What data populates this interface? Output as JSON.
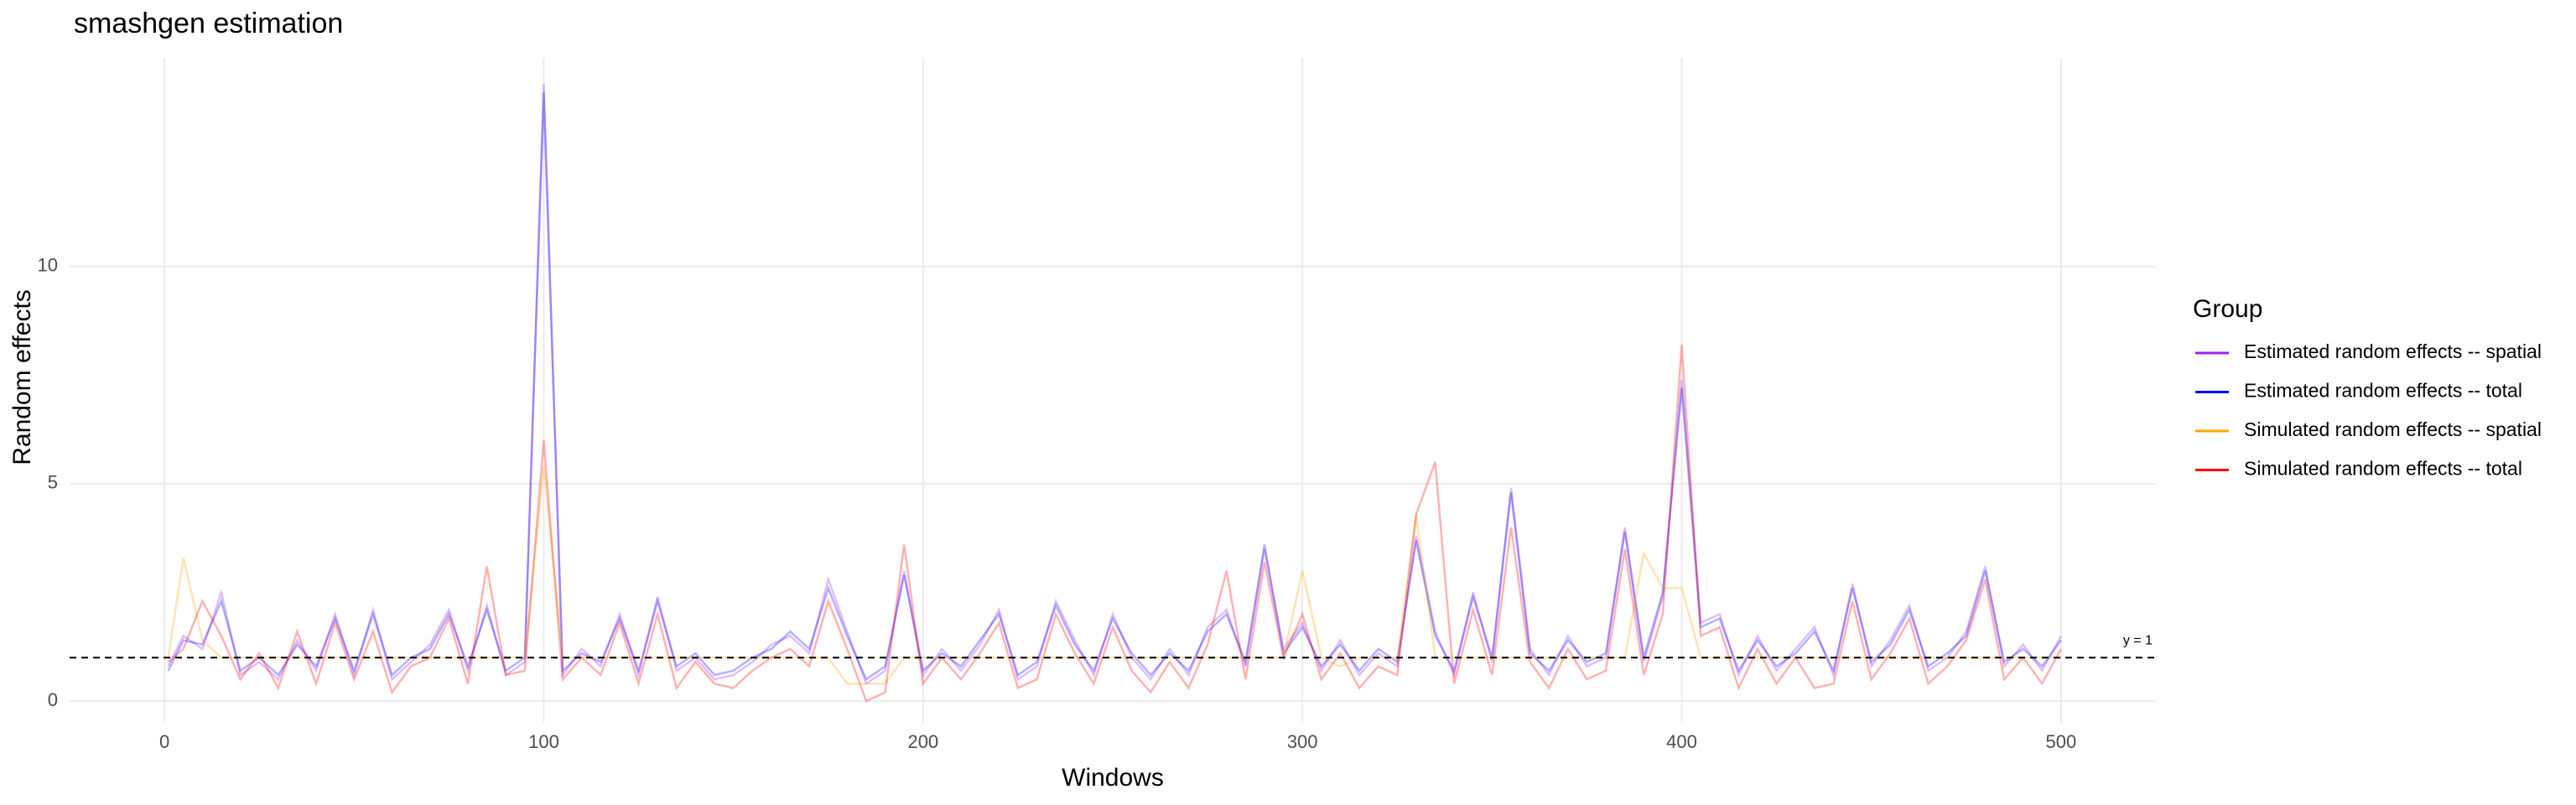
{
  "chart_data": {
    "type": "line",
    "title": "smashgen estimation",
    "x_label": "Windows",
    "y_label": "Random effects",
    "legend_title": "Group",
    "legend_position": "right",
    "grid": true,
    "alpha": 0.3,
    "xlim": [
      -25,
      525
    ],
    "ylim": [
      -0.5,
      14.8
    ],
    "xticks": [
      0,
      100,
      200,
      300,
      400,
      500
    ],
    "yticks": [
      0,
      5,
      10
    ],
    "hline": {
      "value": 1,
      "label": "y = 1"
    },
    "x": [
      1,
      5,
      10,
      15,
      20,
      25,
      30,
      35,
      40,
      45,
      50,
      55,
      60,
      65,
      70,
      75,
      80,
      85,
      90,
      95,
      100,
      105,
      110,
      115,
      120,
      125,
      130,
      135,
      140,
      145,
      150,
      155,
      160,
      165,
      170,
      175,
      180,
      185,
      190,
      195,
      200,
      205,
      210,
      215,
      220,
      225,
      230,
      235,
      240,
      245,
      250,
      255,
      260,
      265,
      270,
      275,
      280,
      285,
      290,
      295,
      300,
      305,
      310,
      315,
      320,
      325,
      330,
      335,
      340,
      345,
      350,
      355,
      360,
      365,
      370,
      375,
      380,
      385,
      390,
      395,
      400,
      405,
      410,
      415,
      420,
      425,
      430,
      435,
      440,
      445,
      450,
      455,
      460,
      465,
      470,
      475,
      480,
      485,
      490,
      495,
      500
    ],
    "series": [
      {
        "name": "Estimated random effects -- spatial",
        "color": "#a020f0",
        "values": [
          0.8,
          1.5,
          1.2,
          2.5,
          0.6,
          0.9,
          0.5,
          1.4,
          0.7,
          2.0,
          0.6,
          2.1,
          0.5,
          0.9,
          1.3,
          2.1,
          0.7,
          2.2,
          0.6,
          0.9,
          14.2,
          0.6,
          1.2,
          0.8,
          2.0,
          0.6,
          2.4,
          0.7,
          1.0,
          0.5,
          0.6,
          0.9,
          1.3,
          1.5,
          1.1,
          2.8,
          1.6,
          0.4,
          0.7,
          3.0,
          0.6,
          1.2,
          0.7,
          1.3,
          2.1,
          0.5,
          0.8,
          2.3,
          1.4,
          0.6,
          2.0,
          1.0,
          0.5,
          1.2,
          0.6,
          1.7,
          2.1,
          0.8,
          3.5,
          1.2,
          1.8,
          0.7,
          1.4,
          0.6,
          1.1,
          0.8,
          3.8,
          1.6,
          0.6,
          2.5,
          0.9,
          4.9,
          1.2,
          0.6,
          1.5,
          0.8,
          1.0,
          4.0,
          0.9,
          2.4,
          7.4,
          1.8,
          2.0,
          0.6,
          1.5,
          0.7,
          1.2,
          1.7,
          0.6,
          2.7,
          0.8,
          1.4,
          2.2,
          0.7,
          1.0,
          1.6,
          3.1,
          0.8,
          1.3,
          0.7,
          1.5
        ]
      },
      {
        "name": "Estimated random effects -- total",
        "color": "#0000ff",
        "values": [
          0.7,
          1.4,
          1.3,
          2.3,
          0.7,
          1.0,
          0.6,
          1.3,
          0.8,
          1.9,
          0.7,
          2.0,
          0.6,
          1.0,
          1.2,
          2.0,
          0.8,
          2.1,
          0.7,
          1.0,
          14.0,
          0.7,
          1.1,
          0.9,
          1.9,
          0.7,
          2.3,
          0.8,
          1.1,
          0.6,
          0.7,
          1.0,
          1.2,
          1.6,
          1.2,
          2.6,
          1.5,
          0.5,
          0.8,
          2.9,
          0.7,
          1.1,
          0.8,
          1.4,
          2.0,
          0.6,
          0.9,
          2.2,
          1.3,
          0.7,
          1.9,
          1.1,
          0.6,
          1.1,
          0.7,
          1.6,
          2.0,
          0.9,
          3.6,
          1.1,
          1.7,
          0.8,
          1.3,
          0.7,
          1.2,
          0.9,
          3.7,
          1.5,
          0.7,
          2.4,
          1.0,
          4.8,
          1.1,
          0.7,
          1.4,
          0.9,
          1.1,
          3.9,
          1.0,
          2.5,
          7.2,
          1.7,
          1.9,
          0.7,
          1.4,
          0.8,
          1.1,
          1.6,
          0.7,
          2.6,
          0.9,
          1.3,
          2.1,
          0.8,
          1.1,
          1.5,
          3.0,
          0.9,
          1.2,
          0.8,
          1.4
        ]
      },
      {
        "name": "Simulated random effects -- spatial",
        "color": "#ffa500",
        "values": [
          1.0,
          3.3,
          1.4,
          1.0,
          1.0,
          1.0,
          1.0,
          1.0,
          1.0,
          1.0,
          1.0,
          1.0,
          1.0,
          1.0,
          1.0,
          1.0,
          1.0,
          1.0,
          1.0,
          1.0,
          5.4,
          1.0,
          1.0,
          1.0,
          1.0,
          1.0,
          1.0,
          1.0,
          1.0,
          1.0,
          1.0,
          1.0,
          1.0,
          1.0,
          1.0,
          1.0,
          0.4,
          0.4,
          0.4,
          1.0,
          1.0,
          1.0,
          1.0,
          1.0,
          1.0,
          1.0,
          1.0,
          1.0,
          1.0,
          1.0,
          1.0,
          1.0,
          1.0,
          1.0,
          1.0,
          1.0,
          1.0,
          1.0,
          1.0,
          1.0,
          3.0,
          1.0,
          0.8,
          1.0,
          1.0,
          1.0,
          4.3,
          1.0,
          1.0,
          1.0,
          1.0,
          1.0,
          1.0,
          1.0,
          1.0,
          1.0,
          1.0,
          1.0,
          3.4,
          2.6,
          2.6,
          1.0,
          1.0,
          1.0,
          1.0,
          1.0,
          1.0,
          1.0,
          1.0,
          1.0,
          1.0,
          1.0,
          1.0,
          1.0,
          1.0,
          1.0,
          1.0,
          1.0,
          1.0,
          1.0,
          1.0
        ]
      },
      {
        "name": "Simulated random effects -- total",
        "color": "#ff0000",
        "values": [
          0.9,
          1.2,
          2.3,
          1.5,
          0.5,
          1.1,
          0.3,
          1.6,
          0.4,
          1.8,
          0.5,
          1.6,
          0.2,
          0.8,
          1.0,
          1.9,
          0.4,
          3.1,
          0.6,
          0.7,
          6.0,
          0.5,
          1.0,
          0.6,
          1.8,
          0.4,
          2.0,
          0.3,
          0.9,
          0.4,
          0.3,
          0.7,
          1.0,
          1.2,
          0.8,
          2.3,
          1.2,
          0.0,
          0.2,
          3.6,
          0.4,
          1.0,
          0.5,
          1.1,
          1.8,
          0.3,
          0.5,
          2.0,
          1.1,
          0.4,
          1.7,
          0.7,
          0.2,
          0.9,
          0.3,
          1.3,
          3.0,
          0.5,
          3.2,
          1.0,
          2.0,
          0.5,
          1.1,
          0.3,
          0.8,
          0.6,
          4.3,
          5.5,
          0.4,
          2.1,
          0.6,
          4.0,
          0.9,
          0.3,
          1.2,
          0.5,
          0.7,
          3.5,
          0.6,
          2.0,
          8.2,
          1.5,
          1.7,
          0.3,
          1.2,
          0.4,
          1.0,
          0.3,
          0.4,
          2.3,
          0.5,
          1.1,
          1.9,
          0.4,
          0.8,
          1.4,
          2.8,
          0.5,
          1.0,
          0.4,
          1.2
        ]
      }
    ]
  }
}
